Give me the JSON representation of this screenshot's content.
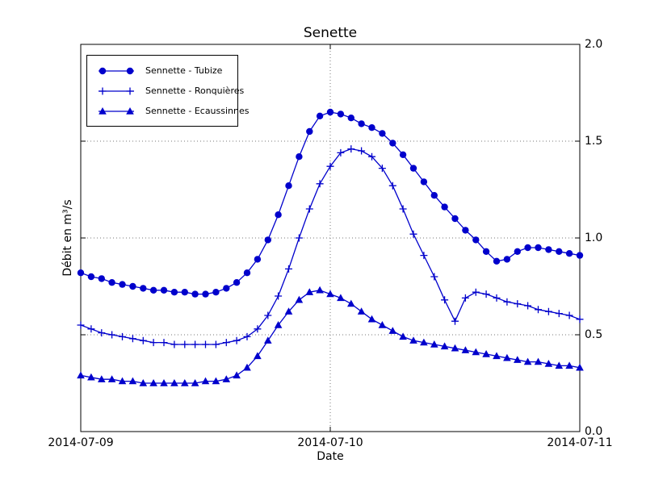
{
  "chart_data": {
    "type": "line",
    "title": "Senette",
    "xlabel": "Date",
    "ylabel": "Débit en m³/s",
    "ylim": [
      0.0,
      2.0
    ],
    "xlim_hours": [
      0,
      48
    ],
    "x_step_hours": 1,
    "grid": true,
    "legend_position": "upper left",
    "line_color": "#0000cc",
    "x_ticks": [
      {
        "pos": 0,
        "label": "2014-07-09"
      },
      {
        "pos": 24,
        "label": "2014-07-10"
      },
      {
        "pos": 48,
        "label": "2014-07-11"
      }
    ],
    "y_ticks": [
      {
        "value": 0.0,
        "label": "0.0"
      },
      {
        "value": 0.5,
        "label": "0.5"
      },
      {
        "value": 1.0,
        "label": "1.0"
      },
      {
        "value": 1.5,
        "label": "1.5"
      },
      {
        "value": 2.0,
        "label": "2.0"
      }
    ],
    "series": [
      {
        "name": "Sennette - Tubize",
        "marker": "circle",
        "values": [
          0.82,
          0.8,
          0.79,
          0.77,
          0.76,
          0.75,
          0.74,
          0.73,
          0.73,
          0.72,
          0.72,
          0.71,
          0.71,
          0.72,
          0.74,
          0.77,
          0.82,
          0.89,
          0.99,
          1.12,
          1.27,
          1.42,
          1.55,
          1.63,
          1.65,
          1.64,
          1.62,
          1.59,
          1.57,
          1.54,
          1.49,
          1.43,
          1.36,
          1.29,
          1.22,
          1.16,
          1.1,
          1.04,
          0.99,
          0.93,
          0.88,
          0.89,
          0.93,
          0.95,
          0.95,
          0.94,
          0.93,
          0.92,
          0.91
        ]
      },
      {
        "name": "Sennette - Ronquières",
        "marker": "plus",
        "values": [
          0.55,
          0.53,
          0.51,
          0.5,
          0.49,
          0.48,
          0.47,
          0.46,
          0.46,
          0.45,
          0.45,
          0.45,
          0.45,
          0.45,
          0.46,
          0.47,
          0.49,
          0.53,
          0.6,
          0.7,
          0.84,
          1.0,
          1.15,
          1.28,
          1.37,
          1.44,
          1.46,
          1.45,
          1.42,
          1.36,
          1.27,
          1.15,
          1.02,
          0.91,
          0.8,
          0.68,
          0.57,
          0.69,
          0.72,
          0.71,
          0.69,
          0.67,
          0.66,
          0.65,
          0.63,
          0.62,
          0.61,
          0.6,
          0.58
        ]
      },
      {
        "name": "Sennette - Ecaussinnes",
        "marker": "triangle",
        "values": [
          0.29,
          0.28,
          0.27,
          0.27,
          0.26,
          0.26,
          0.25,
          0.25,
          0.25,
          0.25,
          0.25,
          0.25,
          0.26,
          0.26,
          0.27,
          0.29,
          0.33,
          0.39,
          0.47,
          0.55,
          0.62,
          0.68,
          0.72,
          0.73,
          0.71,
          0.69,
          0.66,
          0.62,
          0.58,
          0.55,
          0.52,
          0.49,
          0.47,
          0.46,
          0.45,
          0.44,
          0.43,
          0.42,
          0.41,
          0.4,
          0.39,
          0.38,
          0.37,
          0.36,
          0.36,
          0.35,
          0.34,
          0.34,
          0.33
        ]
      }
    ]
  }
}
